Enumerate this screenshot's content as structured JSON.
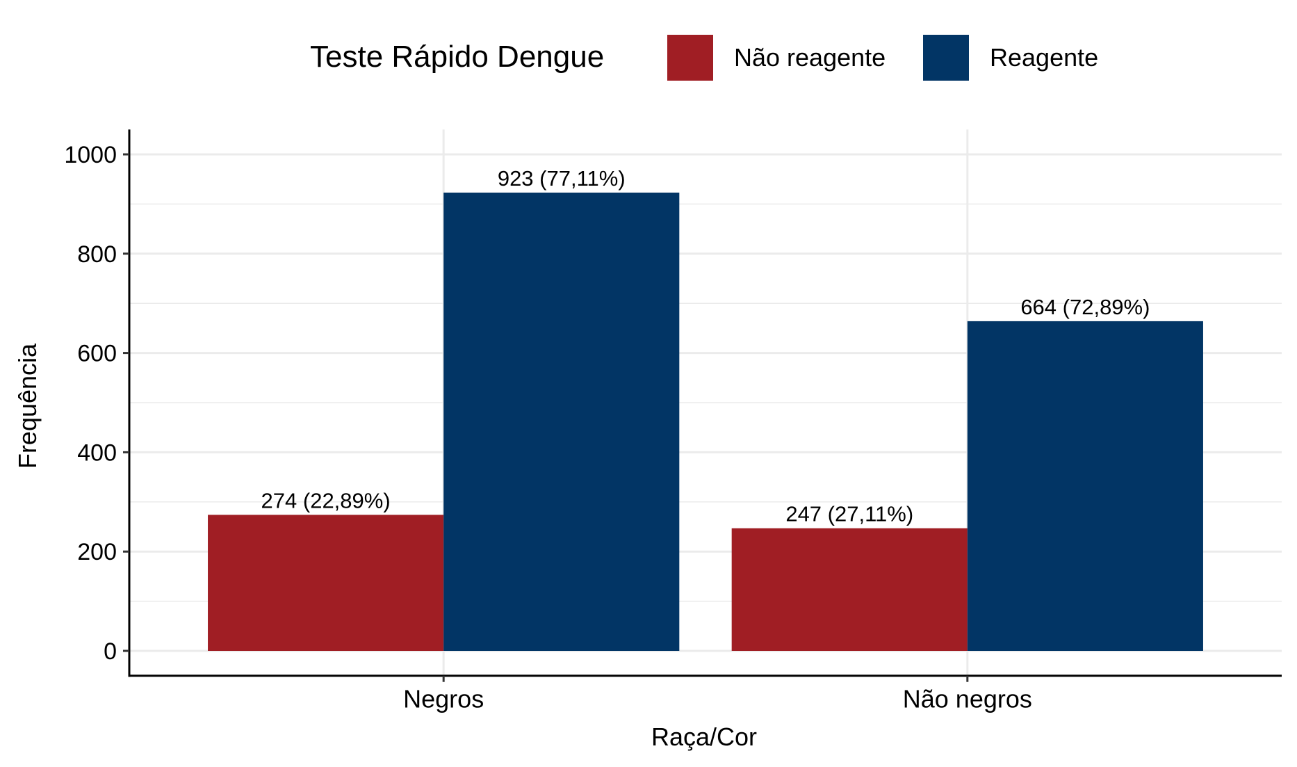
{
  "chart_data": {
    "type": "bar",
    "legend": {
      "title": "Teste Rápido Dengue",
      "position": "top"
    },
    "categories": [
      "Negros",
      "Não negros"
    ],
    "series": [
      {
        "name": "Não reagente",
        "color": "#A01E24",
        "values": [
          274,
          247
        ],
        "labels": [
          "274 (22,89%)",
          "247 (27,11%)"
        ]
      },
      {
        "name": "Reagente",
        "color": "#023565",
        "values": [
          923,
          664
        ],
        "labels": [
          "923 (77,11%)",
          "664 (72,89%)"
        ]
      }
    ],
    "xlabel": "Raça/Cor",
    "ylabel": "Frequência",
    "ylim": [
      -50,
      1050
    ],
    "yticks": [
      0,
      200,
      400,
      600,
      800,
      1000
    ],
    "grid": true
  }
}
